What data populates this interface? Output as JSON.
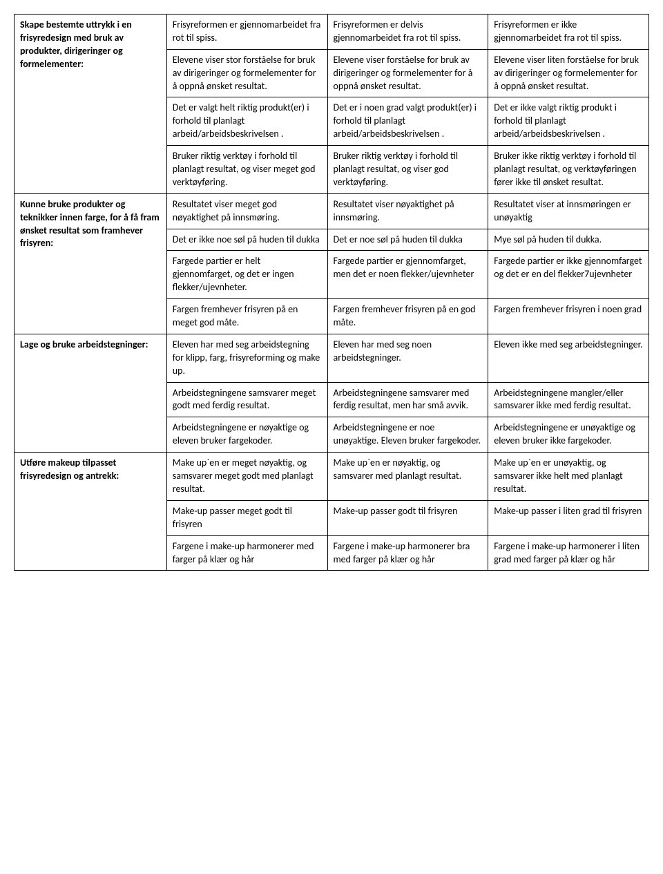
{
  "sections": [
    {
      "header": "Skape bestemte uttrykk i en frisyredesign med bruk av produkter, dirigeringer og formelementer:",
      "rows": [
        {
          "high": "Frisyreformen er gjennomarbeidet fra rot til spiss.",
          "mid": "Frisyreformen er delvis gjennomarbeidet fra rot til spiss.",
          "low": "Frisyreformen er ikke gjennomarbeidet fra rot til spiss."
        },
        {
          "high": "Elevene viser stor forståelse for bruk av dirigeringer og formelementer for å oppnå ønsket resultat.",
          "mid": "Elevene viser forståelse for bruk av dirigeringer og formelementer for å oppnå ønsket resultat.",
          "low": "Elevene viser liten forståelse for bruk av dirigeringer og formelementer for å oppnå ønsket resultat."
        },
        {
          "high": "Det er valgt helt riktig produkt(er) i forhold til planlagt arbeid/arbeidsbeskrivelsen .",
          "mid": "Det er i noen grad valgt produkt(er) i forhold til planlagt arbeid/arbeidsbeskrivelsen .",
          "low": "Det er ikke valgt riktig produkt i forhold til planlagt arbeid/arbeidsbeskrivelsen ."
        },
        {
          "high": "Bruker riktig verktøy i forhold til planlagt resultat, og viser meget god verktøyføring.",
          "mid": "Bruker riktig verktøy i forhold til planlagt resultat, og viser god verktøyføring.",
          "low": "Bruker ikke riktig verktøy i forhold til planlagt resultat, og verktøyføringen fører ikke til ønsket resultat."
        }
      ]
    },
    {
      "header": "Kunne bruke produkter og teknikker innen farge, for å få fram ønsket resultat som framhever frisyren:",
      "rows": [
        {
          "high": "Resultatet viser meget god nøyaktighet på innsmøring.",
          "mid": "Resultatet viser nøyaktighet på innsmøring.",
          "low": "Resultatet viser at innsmøringen er unøyaktig"
        },
        {
          "high": "Det er ikke noe søl på huden til dukka",
          "mid": "Det er noe søl på huden til dukka",
          "low": "Mye søl på huden til dukka."
        },
        {
          "high": "Fargede partier er helt gjennomfarget, og det er ingen flekker/ujevnheter.",
          "mid": "Fargede partier er gjennomfarget, men det er noen flekker/ujevnheter",
          "low": "Fargede partier er ikke gjennomfarget og det er en del flekker7ujevnheter"
        },
        {
          "high": "Fargen fremhever frisyren på en meget god måte.",
          "mid": "Fargen fremhever frisyren på en god måte.",
          "low": "Fargen fremhever frisyren i noen grad"
        }
      ]
    },
    {
      "header": "Lage og bruke arbeidstegninger:",
      "rows": [
        {
          "high": "Eleven har med seg arbeidstegning for klipp, farg, frisyreforming og make up.",
          "mid": "Eleven har med seg noen arbeidstegninger.",
          "low": "Eleven ikke med seg arbeidstegninger."
        },
        {
          "high": "Arbeidstegningene samsvarer meget godt med ferdig resultat.",
          "mid": "Arbeidstegningene samsvarer med ferdig resultat, men har små avvik.",
          "low": "Arbeidstegningene mangler/eller samsvarer ikke med ferdig resultat."
        },
        {
          "high": "Arbeidstegningene er nøyaktige og eleven bruker fargekoder.",
          "mid": "Arbeidstegningene er noe unøyaktige. Eleven bruker fargekoder.",
          "low": "Arbeidstegningene er unøyaktige og eleven bruker ikke fargekoder."
        }
      ]
    },
    {
      "header": "Utføre makeup tilpasset frisyredesign og antrekk:",
      "rows": [
        {
          "high": "Make up`en er meget nøyaktig, og samsvarer meget godt med planlagt resultat.",
          "mid": "Make up`en er nøyaktig, og samsvarer med planlagt resultat.",
          "low": "Make up`en er unøyaktig, og samsvarer ikke helt med planlagt resultat."
        },
        {
          "high": "Make-up passer meget godt til frisyren",
          "mid": "Make-up passer godt til frisyren",
          "low": "Make-up passer i liten grad til frisyren"
        },
        {
          "high": "Fargene i make-up harmonerer med farger på klær og hår",
          "mid": "Fargene i make-up harmonerer bra med farger på klær og hår",
          "low": "Fargene i make-up harmonerer i liten grad med farger på klær og hår"
        }
      ]
    }
  ]
}
